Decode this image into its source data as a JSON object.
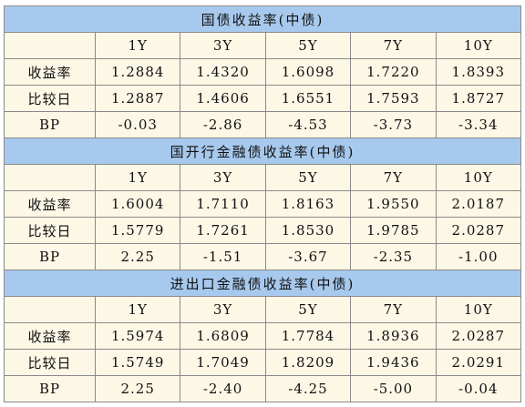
{
  "sections": [
    {
      "title": "国债收益率(中债)",
      "columns": [
        "1Y",
        "3Y",
        "5Y",
        "7Y",
        "10Y"
      ],
      "rows": [
        {
          "label": "收益率",
          "values": [
            "1.2884",
            "1.4320",
            "1.6098",
            "1.7220",
            "1.8393"
          ]
        },
        {
          "label": "比较日",
          "values": [
            "1.2887",
            "1.4606",
            "1.6551",
            "1.7593",
            "1.8727"
          ]
        },
        {
          "label": "BP",
          "values": [
            "-0.03",
            "-2.86",
            "-4.53",
            "-3.73",
            "-3.34"
          ]
        }
      ]
    },
    {
      "title": "国开行金融债收益率(中债)",
      "columns": [
        "1Y",
        "3Y",
        "5Y",
        "7Y",
        "10Y"
      ],
      "rows": [
        {
          "label": "收益率",
          "values": [
            "1.6004",
            "1.7110",
            "1.8163",
            "1.9550",
            "2.0187"
          ]
        },
        {
          "label": "比较日",
          "values": [
            "1.5779",
            "1.7261",
            "1.8530",
            "1.9785",
            "2.0287"
          ]
        },
        {
          "label": "BP",
          "values": [
            "2.25",
            "-1.51",
            "-3.67",
            "-2.35",
            "-1.00"
          ]
        }
      ]
    },
    {
      "title": "进出口金融债收益率(中债)",
      "columns": [
        "1Y",
        "3Y",
        "5Y",
        "7Y",
        "10Y"
      ],
      "rows": [
        {
          "label": "收益率",
          "values": [
            "1.5974",
            "1.6809",
            "1.7784",
            "1.8936",
            "2.0287"
          ]
        },
        {
          "label": "比较日",
          "values": [
            "1.5749",
            "1.7049",
            "1.8209",
            "1.9436",
            "2.0291"
          ]
        },
        {
          "label": "BP",
          "values": [
            "2.25",
            "-2.40",
            "-4.25",
            "-5.00",
            "-0.04"
          ]
        }
      ]
    }
  ]
}
